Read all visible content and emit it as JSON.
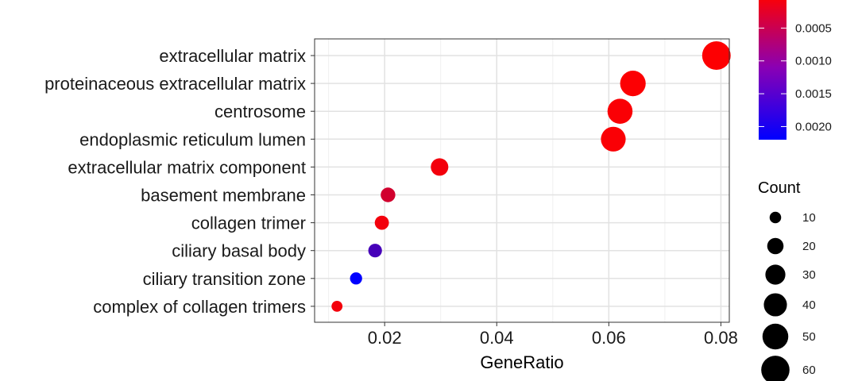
{
  "chart_data": {
    "type": "scatter",
    "title": "",
    "xlabel": "GeneRatio",
    "ylabel": "",
    "xlim": [
      0.0075,
      0.0815
    ],
    "x_ticks": [
      0.02,
      0.04,
      0.06,
      0.08
    ],
    "x_tick_labels": [
      "0.02",
      "0.04",
      "0.06",
      "0.08"
    ],
    "grid": true,
    "categories": [
      "extracellular matrix",
      "proteinaceous extracellular matrix",
      "centrosome",
      "endoplasmic reticulum lumen",
      "extracellular matrix component",
      "basement membrane",
      "collagen trimer",
      "ciliary basal body",
      "ciliary transition zone",
      "complex of collagen trimers"
    ],
    "points": [
      {
        "category": "extracellular matrix",
        "gene_ratio": 0.0792,
        "count": 61,
        "p_adjust": 2e-05
      },
      {
        "category": "proteinaceous extracellular matrix",
        "gene_ratio": 0.0643,
        "count": 49,
        "p_adjust": 3e-05
      },
      {
        "category": "centrosome",
        "gene_ratio": 0.062,
        "count": 47,
        "p_adjust": 4e-05
      },
      {
        "category": "endoplasmic reticulum lumen",
        "gene_ratio": 0.0608,
        "count": 46,
        "p_adjust": 4e-05
      },
      {
        "category": "extracellular matrix component",
        "gene_ratio": 0.0298,
        "count": 23,
        "p_adjust": 0.0001
      },
      {
        "category": "basement membrane",
        "gene_ratio": 0.0206,
        "count": 16,
        "p_adjust": 0.0004
      },
      {
        "category": "collagen trimer",
        "gene_ratio": 0.0195,
        "count": 15,
        "p_adjust": 0.0001
      },
      {
        "category": "ciliary basal body",
        "gene_ratio": 0.0183,
        "count": 14,
        "p_adjust": 0.0016
      },
      {
        "category": "ciliary transition zone",
        "gene_ratio": 0.0149,
        "count": 11,
        "p_adjust": 0.0022
      },
      {
        "category": "complex of collagen trimers",
        "gene_ratio": 0.0115,
        "count": 9,
        "p_adjust": 0.0001
      }
    ],
    "color_legend": {
      "ticks": [
        0.0005,
        0.001,
        0.0015,
        0.002
      ],
      "tick_labels": [
        "0.0005",
        "0.0010",
        "0.0015",
        "0.0020"
      ],
      "range": [
        0.0,
        0.0022
      ],
      "low_color": "#ff0000",
      "high_color": "#0000ff",
      "placement": "right"
    },
    "size_legend": {
      "title": "Count",
      "values": [
        10,
        20,
        30,
        40,
        50,
        60
      ],
      "labels": [
        "10",
        "20",
        "30",
        "40",
        "50",
        "60"
      ],
      "placement": "right"
    }
  }
}
